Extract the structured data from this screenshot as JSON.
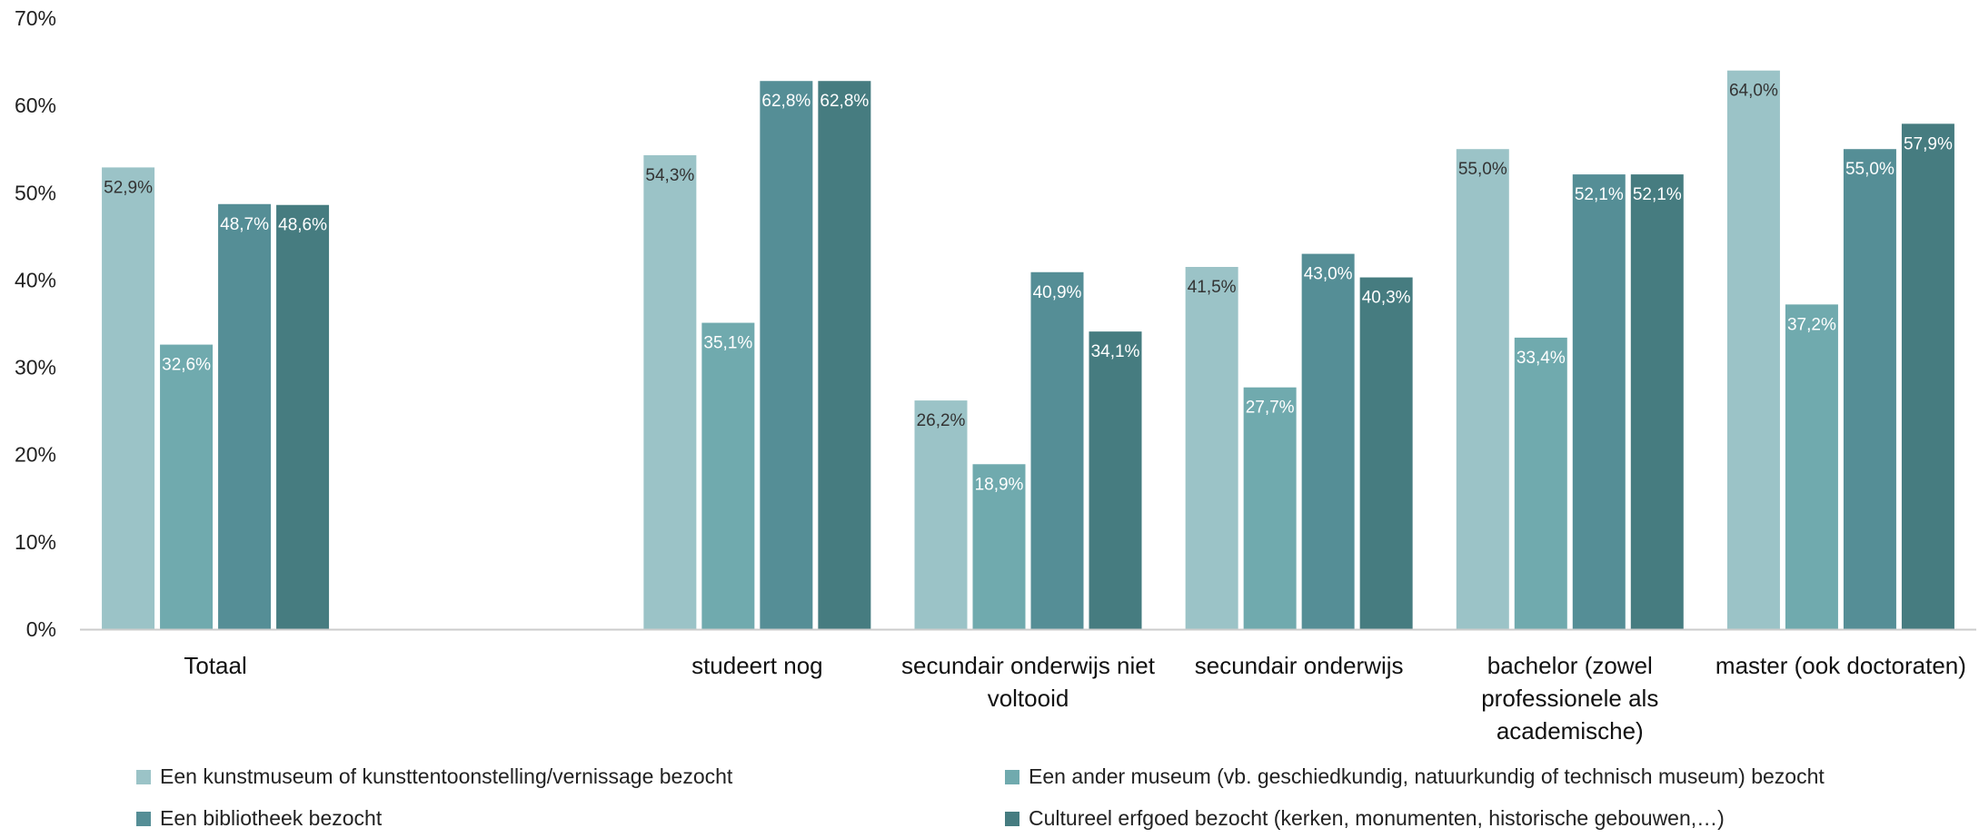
{
  "chart_data": {
    "type": "bar",
    "title": "",
    "xlabel": "",
    "ylabel": "",
    "ylim": [
      0,
      70
    ],
    "yticks": [
      0,
      10,
      20,
      30,
      40,
      50,
      60,
      70
    ],
    "ytick_labels": [
      "0%",
      "10%",
      "20%",
      "30%",
      "40%",
      "50%",
      "60%",
      "70%"
    ],
    "categories": [
      [
        "Totaal"
      ],
      [
        ""
      ],
      [
        "studeert nog"
      ],
      [
        "secundair onderwijs niet",
        "voltooid"
      ],
      [
        "secundair onderwijs"
      ],
      [
        "bachelor (zowel",
        "professionele als",
        "academische)"
      ],
      [
        "master (ook doctoraten)"
      ]
    ],
    "series": [
      {
        "name": "Een kunstmuseum of kunsttentoonstelling/vernissage bezocht",
        "color": "#9bc3c7",
        "label_color": "#333333",
        "values": [
          52.9,
          null,
          54.3,
          26.2,
          41.5,
          55.0,
          64.0
        ],
        "labels": [
          "52,9%",
          "",
          "54,3%",
          "26,2%",
          "41,5%",
          "55,0%",
          "64,0%"
        ]
      },
      {
        "name": "Een ander museum (vb. geschiedkundig, natuurkundig of technisch museum) bezocht",
        "color": "#70aaae",
        "label_color": "#ffffff",
        "values": [
          32.6,
          null,
          35.1,
          18.9,
          27.7,
          33.4,
          37.2
        ],
        "labels": [
          "32,6%",
          "",
          "35,1%",
          "18,9%",
          "27,7%",
          "33,4%",
          "37,2%"
        ]
      },
      {
        "name": "Een bibliotheek bezocht",
        "color": "#558e96",
        "label_color": "#ffffff",
        "values": [
          48.7,
          null,
          62.8,
          40.9,
          43.0,
          52.1,
          55.0
        ],
        "labels": [
          "48,7%",
          "",
          "62,8%",
          "40,9%",
          "43,0%",
          "52,1%",
          "55,0%"
        ]
      },
      {
        "name": "Cultureel erfgoed bezocht (kerken, monumenten, historische gebouwen,…)",
        "color": "#467c80",
        "label_color": "#ffffff",
        "values": [
          48.6,
          null,
          62.8,
          34.1,
          40.3,
          52.1,
          57.9
        ],
        "labels": [
          "48,6%",
          "",
          "62,8%",
          "34,1%",
          "40,3%",
          "52,1%",
          "57,9%"
        ]
      }
    ],
    "grid": false,
    "legend_position": "bottom"
  }
}
